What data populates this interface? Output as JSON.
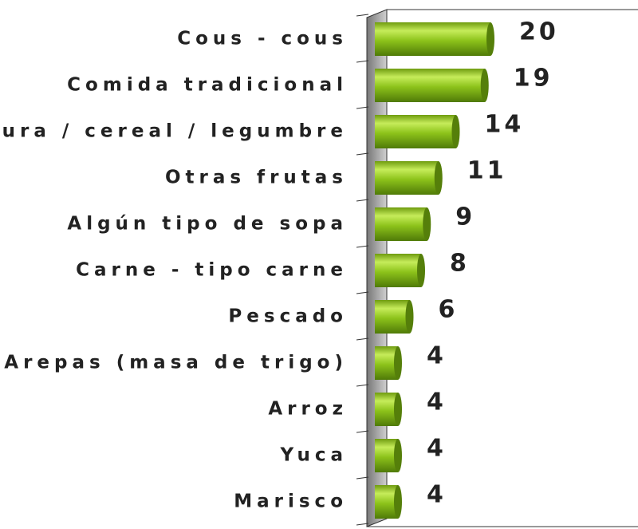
{
  "chart_data": {
    "type": "bar",
    "orientation": "horizontal",
    "categories": [
      "Cous - cous",
      "Comida tradicional",
      "lura / cereal / legumbre",
      "Otras frutas",
      "Algún tipo de sopa",
      "Carne - tipo carne",
      "Pescado",
      "Arepas (masa de trigo)",
      "Arroz",
      "Yuca",
      "Marisco"
    ],
    "values": [
      20,
      19,
      14,
      11,
      9,
      8,
      6,
      4,
      4,
      4,
      4
    ],
    "color": "#8cc21a"
  }
}
